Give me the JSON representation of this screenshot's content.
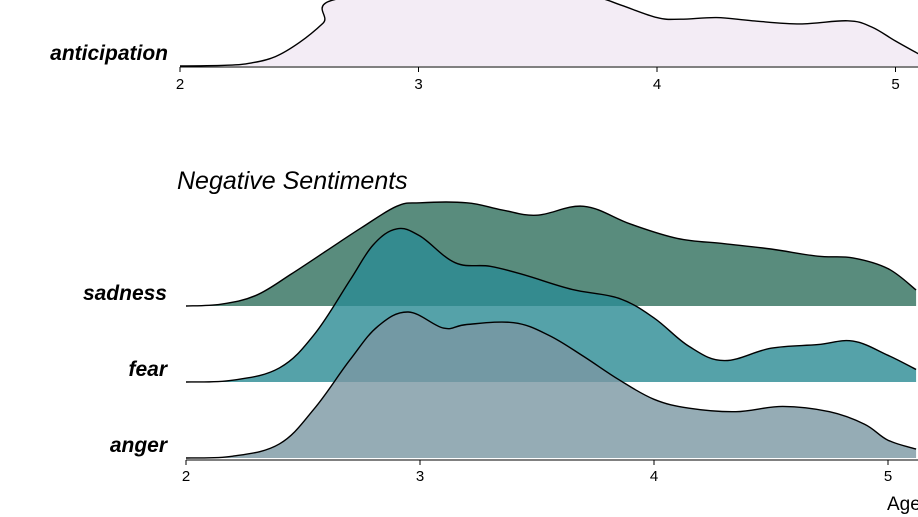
{
  "chart_data": [
    {
      "type": "area",
      "panel": "top",
      "title": "",
      "xlim": [
        2,
        5.1
      ],
      "x_ticks": [
        "2",
        "3",
        "4",
        "5"
      ],
      "xlabel": "",
      "series": [
        {
          "name": "anticipation",
          "color": "#f3ecf5",
          "x": [
            2.0,
            2.2,
            2.3,
            2.4,
            2.5,
            2.6,
            2.7,
            3.6,
            3.75,
            3.85,
            4.0,
            4.1,
            4.25,
            4.4,
            4.6,
            4.8,
            4.9,
            5.0,
            5.1
          ],
          "density": [
            0.0,
            0.01,
            0.04,
            0.12,
            0.3,
            0.55,
            0.88,
            0.94,
            0.88,
            0.78,
            0.62,
            0.6,
            0.62,
            0.58,
            0.54,
            0.58,
            0.5,
            0.32,
            0.15
          ]
        }
      ]
    },
    {
      "type": "area",
      "panel": "bottom",
      "title": "Negative Sentiments",
      "xlim": [
        2,
        5.12
      ],
      "x_ticks": [
        "2",
        "3",
        "4",
        "5"
      ],
      "xlabel": "Age",
      "series": [
        {
          "name": "sadness",
          "color": "#2f6f5c",
          "x": [
            2.0,
            2.15,
            2.3,
            2.45,
            2.6,
            2.75,
            2.9,
            3.0,
            3.2,
            3.35,
            3.5,
            3.7,
            3.9,
            4.1,
            4.3,
            4.5,
            4.7,
            4.85,
            5.0,
            5.12
          ],
          "density": [
            0.0,
            0.01,
            0.06,
            0.18,
            0.31,
            0.44,
            0.56,
            0.58,
            0.58,
            0.54,
            0.51,
            0.56,
            0.46,
            0.38,
            0.35,
            0.32,
            0.28,
            0.27,
            0.21,
            0.09
          ]
        },
        {
          "name": "fear",
          "color": "#2a8b93",
          "x": [
            2.0,
            2.2,
            2.4,
            2.55,
            2.7,
            2.8,
            2.9,
            3.0,
            3.15,
            3.3,
            3.45,
            3.65,
            3.85,
            4.0,
            4.15,
            4.3,
            4.5,
            4.7,
            4.85,
            5.0,
            5.12
          ],
          "density": [
            0.0,
            0.01,
            0.08,
            0.27,
            0.57,
            0.77,
            0.86,
            0.82,
            0.67,
            0.65,
            0.6,
            0.52,
            0.47,
            0.36,
            0.2,
            0.12,
            0.19,
            0.21,
            0.23,
            0.15,
            0.07
          ]
        },
        {
          "name": "anger",
          "color": "#7a97a3",
          "x": [
            2.0,
            2.2,
            2.4,
            2.55,
            2.7,
            2.82,
            2.95,
            3.1,
            3.2,
            3.4,
            3.55,
            3.7,
            3.85,
            4.0,
            4.15,
            4.35,
            4.55,
            4.75,
            4.9,
            5.0,
            5.12
          ],
          "density": [
            0.0,
            0.01,
            0.08,
            0.28,
            0.55,
            0.74,
            0.82,
            0.73,
            0.75,
            0.76,
            0.69,
            0.57,
            0.44,
            0.33,
            0.28,
            0.26,
            0.29,
            0.26,
            0.19,
            0.1,
            0.05
          ]
        }
      ]
    }
  ]
}
